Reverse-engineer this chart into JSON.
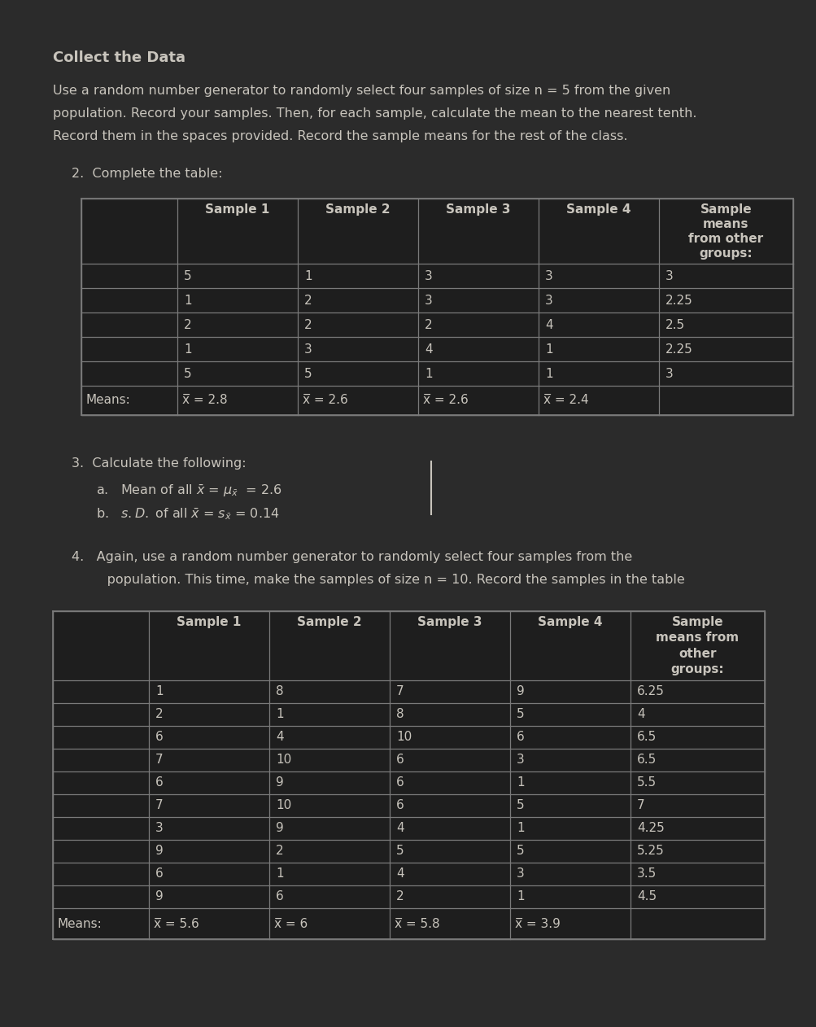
{
  "bg_color": "#2b2b2b",
  "text_color": "#c8c4bc",
  "table_bg": "#1e1e1e",
  "table_border": "#7a7a7a",
  "title": "Collect the Data",
  "intro_text": "Use a random number generator to randomly select four samples of size n = 5 from the given\npopulation. Record your samples. Then, for each sample, calculate the mean to the nearest tenth.\nRecord them in the spaces provided. Record the sample means for the rest of the class.",
  "q2_label": "2.  Complete the table:",
  "table1_headers": [
    "",
    "Sample 1",
    "Sample 2",
    "Sample 3",
    "Sample 4",
    "Sample\nmeans\nfrom other\ngroups:"
  ],
  "table1_data": [
    [
      "",
      "5",
      "1",
      "3",
      "3",
      "3"
    ],
    [
      "",
      "1",
      "2",
      "3",
      "3",
      "2.25"
    ],
    [
      "",
      "2",
      "2",
      "2",
      "4",
      "2.5"
    ],
    [
      "",
      "1",
      "3",
      "4",
      "1",
      "2.25"
    ],
    [
      "",
      "5",
      "5",
      "1",
      "1",
      "3"
    ]
  ],
  "table1_means": [
    "Means:",
    "x̅ = 2.8",
    "x̅ = 2.6",
    "x̅ = 2.6",
    "x̅ = 2.4",
    ""
  ],
  "q3_label": "3.  Calculate the following:",
  "q3a_prefix": "a.   Mean of all ",
  "q3a_suffix": " = 2.6",
  "q3b_prefix": "b.   s. D. of all ",
  "q3b_suffix": " = 0.14",
  "q4_line1": "4.   Again, use a random number generator to randomly select four samples from the",
  "q4_line2": "     population. This time, make the samples of size n = 10. Record the samples in the table",
  "table2_headers": [
    "",
    "Sample 1",
    "Sample 2",
    "Sample 3",
    "Sample 4",
    "Sample\nmeans from\nother\ngroups:"
  ],
  "table2_data": [
    [
      "",
      "1",
      "8",
      "7",
      "9",
      "6.25"
    ],
    [
      "",
      "2",
      "1",
      "8",
      "5",
      "4"
    ],
    [
      "",
      "6",
      "4",
      "10",
      "6",
      "6.5"
    ],
    [
      "",
      "7",
      "10",
      "6",
      "3",
      "6.5"
    ],
    [
      "",
      "6",
      "9",
      "6",
      "1",
      "5.5"
    ],
    [
      "",
      "7",
      "10",
      "6",
      "5",
      "7"
    ],
    [
      "",
      "3",
      "9",
      "4",
      "1",
      "4.25"
    ],
    [
      "",
      "9",
      "2",
      "5",
      "5",
      "5.25"
    ],
    [
      "",
      "6",
      "1",
      "4",
      "3",
      "3.5"
    ],
    [
      "",
      "9",
      "6",
      "2",
      "1",
      "4.5"
    ]
  ],
  "table2_means": [
    "Means:",
    "x̅ = 5.6",
    "x̅ = 6",
    "x̅ = 5.8",
    "x̅ = 3.9",
    ""
  ]
}
